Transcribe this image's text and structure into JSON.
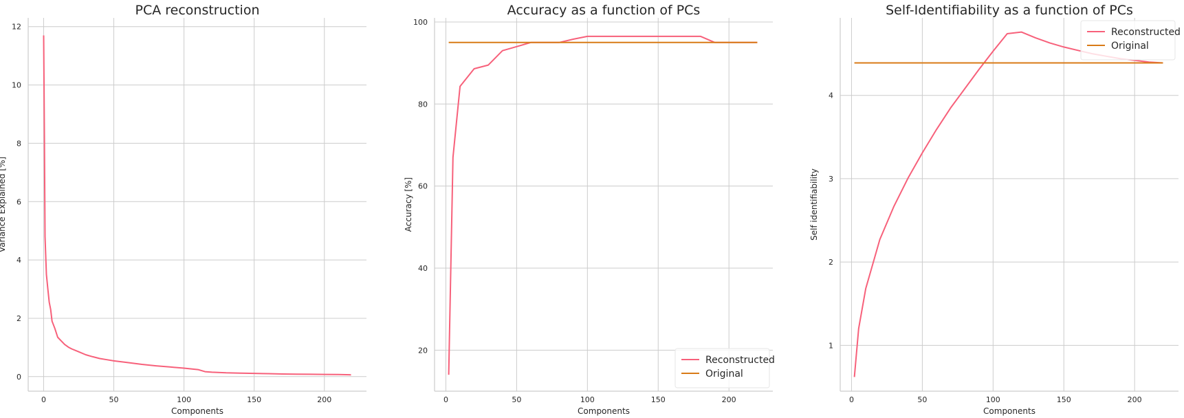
{
  "colors": {
    "reconstructed": "#f7607a",
    "original": "#d87a16"
  },
  "chart_data": [
    {
      "type": "line",
      "title": "PCA reconstruction",
      "xlabel": "Components",
      "ylabel": "Variance Explained [%]",
      "xlim": [
        -11,
        230
      ],
      "ylim": [
        -0.5,
        12.3
      ],
      "xticks": [
        0,
        50,
        100,
        150,
        200
      ],
      "yticks": [
        0,
        2,
        4,
        6,
        8,
        10,
        12
      ],
      "grid": true,
      "legend": null,
      "series": [
        {
          "color_key": "reconstructed",
          "x": [
            0,
            0.5,
            1,
            2,
            3,
            4,
            5,
            6,
            8,
            10,
            12,
            15,
            18,
            20,
            25,
            30,
            35,
            40,
            45,
            50,
            60,
            70,
            80,
            90,
            100,
            110,
            115,
            120,
            130,
            140,
            150,
            160,
            170,
            180,
            190,
            200,
            210,
            219
          ],
          "y": [
            11.7,
            8.5,
            4.8,
            3.5,
            3.0,
            2.55,
            2.3,
            1.9,
            1.65,
            1.35,
            1.25,
            1.1,
            1.0,
            0.95,
            0.85,
            0.75,
            0.68,
            0.62,
            0.58,
            0.54,
            0.48,
            0.42,
            0.37,
            0.33,
            0.29,
            0.24,
            0.17,
            0.15,
            0.13,
            0.12,
            0.11,
            0.1,
            0.09,
            0.085,
            0.08,
            0.075,
            0.07,
            0.06
          ]
        }
      ]
    },
    {
      "type": "line",
      "title": "Accuracy as a function of PCs",
      "xlabel": "Components",
      "ylabel": "Accuracy [%]",
      "xlim": [
        -8,
        231
      ],
      "ylim": [
        10,
        101
      ],
      "xticks": [
        0,
        50,
        100,
        150,
        200
      ],
      "yticks": [
        20,
        40,
        60,
        80,
        100
      ],
      "grid": true,
      "legend": "lower-right",
      "series": [
        {
          "name": "Reconstructed",
          "color_key": "reconstructed",
          "x": [
            2,
            5,
            10,
            20,
            30,
            40,
            50,
            60,
            70,
            80,
            90,
            100,
            110,
            120,
            130,
            140,
            150,
            160,
            170,
            180,
            190,
            200,
            210,
            220
          ],
          "y": [
            14,
            67,
            84.3,
            88.6,
            89.5,
            93,
            94,
            95,
            95,
            95,
            95.8,
            96.5,
            96.5,
            96.5,
            96.5,
            96.5,
            96.5,
            96.5,
            96.5,
            96.5,
            95,
            95,
            95,
            95
          ]
        },
        {
          "name": "Original",
          "color_key": "original",
          "x": [
            2,
            220
          ],
          "y": [
            95,
            95
          ]
        }
      ]
    },
    {
      "type": "line",
      "title": "Self-Identifiability as a function of PCs",
      "xlabel": "Components",
      "ylabel": "Self identifiability",
      "xlim": [
        -8,
        231
      ],
      "ylim": [
        0.45,
        4.93
      ],
      "xticks": [
        0,
        50,
        100,
        150,
        200
      ],
      "yticks": [
        1,
        2,
        3,
        4
      ],
      "grid": true,
      "legend": "upper-right",
      "series": [
        {
          "name": "Reconstructed",
          "color_key": "reconstructed",
          "x": [
            2,
            5,
            10,
            20,
            30,
            40,
            50,
            60,
            70,
            80,
            90,
            100,
            110,
            120,
            130,
            140,
            150,
            160,
            170,
            180,
            190,
            200,
            210,
            220
          ],
          "y": [
            0.62,
            1.2,
            1.68,
            2.27,
            2.67,
            3.01,
            3.31,
            3.59,
            3.85,
            4.08,
            4.31,
            4.53,
            4.74,
            4.76,
            4.69,
            4.63,
            4.58,
            4.54,
            4.5,
            4.47,
            4.44,
            4.42,
            4.4,
            4.39
          ]
        },
        {
          "name": "Original",
          "color_key": "original",
          "x": [
            2,
            220
          ],
          "y": [
            4.39,
            4.39
          ]
        }
      ]
    }
  ]
}
